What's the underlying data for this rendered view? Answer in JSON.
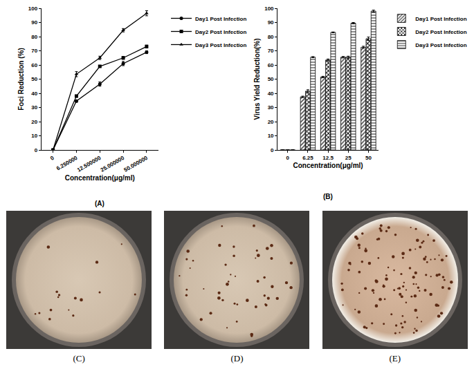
{
  "chart_data": [
    {
      "type": "line",
      "x_label": "Concentration(μg/ml)",
      "y_label": "Foci Reduction (%)",
      "annotations": [
        "(A)"
      ],
      "categories": [
        "0",
        "6.250000",
        "12.500000",
        "25.000000",
        "50.000000"
      ],
      "series": [
        {
          "name": "Day1 Post Infection",
          "color": "#000000",
          "marker": "circle",
          "values": [
            0,
            34.5,
            46.5,
            61,
            69
          ],
          "errors": [
            0,
            0.8,
            1.5,
            1.5,
            1
          ]
        },
        {
          "name": "Day2 Post Infection",
          "color": "#000000",
          "marker": "square",
          "values": [
            0,
            38,
            59,
            65,
            73
          ],
          "errors": [
            0,
            0.8,
            0.5,
            1,
            1
          ]
        },
        {
          "name": "Day3 Post Infection",
          "color": "#000000",
          "marker": "triangle",
          "values": [
            0,
            53.5,
            65,
            84.5,
            96.5
          ],
          "errors": [
            0,
            1.8,
            1.2,
            1.2,
            1.8
          ]
        }
      ],
      "ylim": [
        0,
        100
      ],
      "yticks": [
        0,
        10,
        20,
        30,
        40,
        50,
        60,
        70,
        80,
        90,
        100
      ],
      "grid": false,
      "legend": "right"
    },
    {
      "type": "bar",
      "x_label": "Concentration(μg/ml)",
      "y_label": "Virus Yield Reduction(%)",
      "annotations": [
        "(B)"
      ],
      "categories": [
        "0",
        "6.25",
        "12.5",
        "25",
        "50"
      ],
      "series": [
        {
          "name": "Day1 Post Infection",
          "color": "#555555",
          "marker": "diagonal",
          "values": [
            0,
            37.5,
            51.5,
            65.5,
            72.5
          ],
          "errors": [
            0,
            0.5,
            0.5,
            0.5,
            0.7
          ]
        },
        {
          "name": "Day2 Post Infection",
          "color": "#000000",
          "marker": "cross",
          "values": [
            0,
            41.5,
            63.5,
            65.5,
            78.5
          ],
          "errors": [
            0,
            1,
            0.7,
            0.7,
            1.2
          ]
        },
        {
          "name": "Day3 Post Infection",
          "color": "#808080",
          "marker": "horizontal",
          "values": [
            0,
            65.5,
            83,
            89.5,
            98
          ],
          "errors": [
            0,
            0.4,
            0.3,
            0.5,
            0.7
          ]
        }
      ],
      "ylim": [
        0,
        100
      ],
      "yticks": [
        0,
        10,
        20,
        30,
        40,
        50,
        60,
        70,
        80,
        90,
        100
      ],
      "grid": false,
      "legend": "right"
    }
  ],
  "photos": [
    {
      "label": "(C)"
    },
    {
      "label": "(D)"
    },
    {
      "label": "(E)"
    }
  ]
}
